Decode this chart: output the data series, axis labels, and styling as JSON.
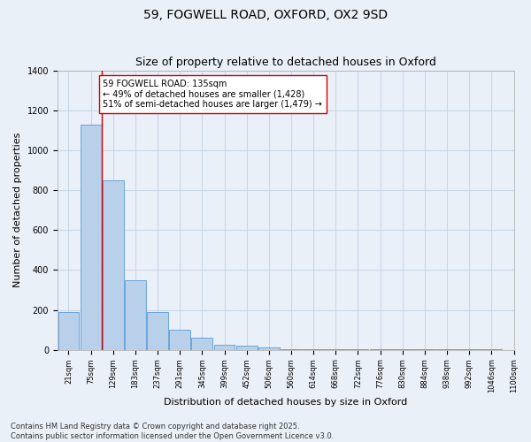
{
  "title1": "59, FOGWELL ROAD, OXFORD, OX2 9SD",
  "title2": "Size of property relative to detached houses in Oxford",
  "xlabel": "Distribution of detached houses by size in Oxford",
  "ylabel": "Number of detached properties",
  "categories": [
    "21sqm",
    "75sqm",
    "129sqm",
    "183sqm",
    "237sqm",
    "291sqm",
    "345sqm",
    "399sqm",
    "452sqm",
    "506sqm",
    "560sqm",
    "614sqm",
    "668sqm",
    "722sqm",
    "776sqm",
    "830sqm",
    "884sqm",
    "938sqm",
    "992sqm",
    "1046sqm",
    "1100sqm"
  ],
  "bar_values": [
    190,
    1130,
    850,
    350,
    190,
    100,
    60,
    25,
    20,
    10,
    5,
    3,
    3,
    3,
    2,
    2,
    2,
    1,
    1,
    1
  ],
  "bar_color": "#b8d0ea",
  "bar_edge_color": "#5b9bd5",
  "grid_color": "#c8d8e8",
  "bg_color": "#eaf0f8",
  "vline_bin": 2,
  "vline_color": "#cc0000",
  "annotation_text": "59 FOGWELL ROAD: 135sqm\n← 49% of detached houses are smaller (1,428)\n51% of semi-detached houses are larger (1,479) →",
  "annotation_box_color": "#ffffff",
  "annotation_box_edge": "#cc0000",
  "ylim": [
    0,
    1400
  ],
  "yticks": [
    0,
    200,
    400,
    600,
    800,
    1000,
    1200,
    1400
  ],
  "footnote": "Contains HM Land Registry data © Crown copyright and database right 2025.\nContains public sector information licensed under the Open Government Licence v3.0.",
  "title1_fontsize": 10,
  "title2_fontsize": 9,
  "tick_fontsize": 6,
  "label_fontsize": 8,
  "annotation_fontsize": 7,
  "footnote_fontsize": 6
}
